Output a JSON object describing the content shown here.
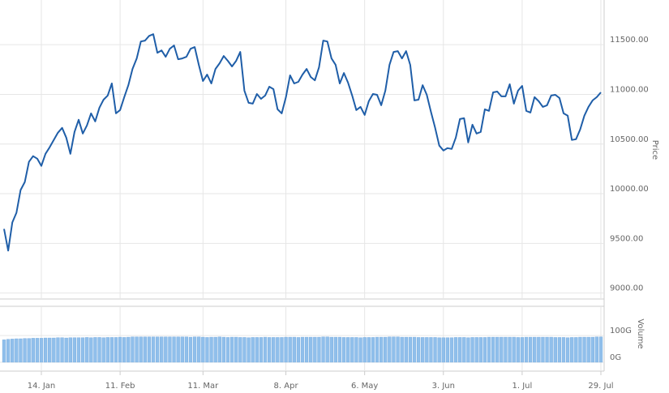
{
  "chart_data": [
    {
      "type": "line",
      "y_label": "Price",
      "color": "#1f5ea8",
      "ylim": [
        8940,
        11950
      ],
      "yticks": [
        {
          "value": 9000,
          "label": "9000.00"
        },
        {
          "value": 9500,
          "label": "9500.00"
        },
        {
          "value": 10000,
          "label": "10000.00"
        },
        {
          "value": 10500,
          "label": "10500.00"
        },
        {
          "value": 11000,
          "label": "11000.00"
        },
        {
          "value": 11500,
          "label": "11500.00"
        }
      ],
      "grid": true,
      "values": [
        9646,
        9427,
        9711,
        9809,
        10037,
        10118,
        10321,
        10378,
        10353,
        10280,
        10402,
        10467,
        10541,
        10614,
        10663,
        10565,
        10402,
        10622,
        10744,
        10606,
        10687,
        10809,
        10728,
        10866,
        10947,
        10988,
        11110,
        10809,
        10842,
        10972,
        11093,
        11256,
        11362,
        11532,
        11541,
        11589,
        11606,
        11419,
        11443,
        11378,
        11459,
        11492,
        11354,
        11362,
        11378,
        11459,
        11476,
        11297,
        11134,
        11199,
        11110,
        11256,
        11313,
        11386,
        11337,
        11281,
        11337,
        11427,
        11037,
        10915,
        10907,
        11004,
        10955,
        10988,
        11077,
        11053,
        10850,
        10809,
        10972,
        11191,
        11110,
        11126,
        11199,
        11256,
        11175,
        11142,
        11272,
        11541,
        11532,
        11362,
        11297,
        11110,
        11215,
        11118,
        10988,
        10842,
        10874,
        10793,
        10931,
        11004,
        10996,
        10890,
        11037,
        11297,
        11427,
        11435,
        11362,
        11435,
        11297,
        10939,
        10947,
        11093,
        10996,
        10825,
        10663,
        10484,
        10435,
        10459,
        10451,
        10565,
        10752,
        10760,
        10516,
        10695,
        10606,
        10622,
        10850,
        10834,
        11020,
        11028,
        10980,
        10980,
        11102,
        10907,
        11037,
        11085,
        10834,
        10817,
        10972,
        10931,
        10874,
        10890,
        10988,
        10996,
        10964,
        10809,
        10785,
        10541,
        10549,
        10646,
        10785,
        10874,
        10939,
        10972,
        11020
      ]
    },
    {
      "type": "bar",
      "y_label": "Volume",
      "color": "#90bfeb",
      "ylim": [
        0,
        210
      ],
      "yticks": [
        {
          "value": 0,
          "label": "0G"
        },
        {
          "value": 100,
          "label": "100G"
        }
      ],
      "grid": true,
      "categories": [
        null,
        null,
        null,
        null,
        null,
        null,
        null,
        null,
        null,
        "14. Jan",
        null,
        null,
        null,
        null,
        null,
        null,
        null,
        null,
        null,
        null,
        null,
        null,
        null,
        null,
        null,
        null,
        null,
        null,
        "11. Feb",
        null,
        null,
        null,
        null,
        null,
        null,
        null,
        null,
        null,
        null,
        null,
        null,
        null,
        null,
        null,
        null,
        null,
        null,
        null,
        "11. Mar",
        null,
        null,
        null,
        null,
        null,
        null,
        null,
        null,
        null,
        null,
        null,
        null,
        null,
        null,
        null,
        null,
        null,
        null,
        null,
        "8. Apr",
        null,
        null,
        null,
        null,
        null,
        null,
        null,
        null,
        null,
        null,
        null,
        null,
        null,
        null,
        null,
        null,
        null,
        null,
        "6. May",
        null,
        null,
        null,
        null,
        null,
        null,
        null,
        null,
        null,
        null,
        null,
        null,
        null,
        null,
        null,
        null,
        null,
        null,
        "3. Jun",
        null,
        null,
        null,
        null,
        null,
        null,
        null,
        null,
        null,
        null,
        null,
        null,
        null,
        null,
        null,
        null,
        null,
        null,
        "1. Jul",
        null,
        null,
        null,
        null,
        null,
        null,
        null,
        null,
        null,
        null,
        null,
        null,
        null,
        null,
        null,
        null,
        null,
        null,
        "29. Jul"
      ],
      "values": [
        84,
        86,
        87,
        88,
        88,
        89,
        89,
        90,
        90,
        90,
        91,
        91,
        91,
        92,
        92,
        91,
        92,
        92,
        92,
        92,
        93,
        92,
        93,
        93,
        92,
        93,
        93,
        93,
        94,
        93,
        94,
        95,
        95,
        95,
        95,
        95,
        95,
        95,
        95,
        95,
        95,
        95,
        95,
        95,
        95,
        94,
        95,
        95,
        94,
        93,
        94,
        94,
        95,
        94,
        93,
        94,
        94,
        93,
        93,
        92,
        93,
        93,
        93,
        94,
        93,
        93,
        93,
        93,
        94,
        94,
        94,
        93,
        94,
        94,
        94,
        94,
        94,
        95,
        95,
        94,
        94,
        94,
        93,
        93,
        93,
        93,
        92,
        93,
        93,
        93,
        94,
        94,
        94,
        95,
        95,
        95,
        94,
        94,
        94,
        94,
        93,
        93,
        93,
        93,
        93,
        92,
        92,
        92,
        92,
        93,
        93,
        93,
        92,
        93,
        93,
        93,
        93,
        94,
        94,
        94,
        94,
        94,
        94,
        94,
        93,
        93,
        94,
        94,
        94,
        94,
        94,
        94,
        94,
        93,
        93,
        93,
        92,
        93,
        93,
        94,
        94,
        94,
        94,
        95,
        95
      ]
    }
  ]
}
